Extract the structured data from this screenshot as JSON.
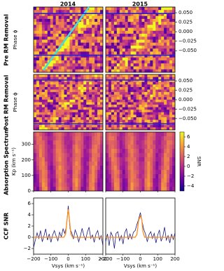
{
  "columns": [
    "2014",
    "2015"
  ],
  "rows": [
    "Pre RM Removal",
    "Post RM Removal",
    "Absorption Spectrum",
    "CCF SNR"
  ],
  "chart_data": [
    {
      "type": "heatmap",
      "ylabel": "Phase ϕ",
      "ylim": [
        -0.107,
        0.065
      ],
      "yticks": [
        {
          "value": 0.05,
          "label": "0.050"
        },
        {
          "value": 0.025,
          "label": "0.025"
        },
        {
          "value": 0,
          "label": "0.000"
        },
        {
          "value": -0.025,
          "label": "−0.025"
        },
        {
          "value": -0.05,
          "label": "−0.050"
        }
      ],
      "transit_phase": [
        0.048,
        -0.062
      ],
      "line_color": "#2020d0"
    },
    {
      "type": "heatmap",
      "ylabel": "Phase ϕ",
      "ylim": [
        -0.08,
        0.067
      ],
      "yticks": [
        {
          "value": 0.05,
          "label": "0.050"
        },
        {
          "value": 0.025,
          "label": "0.025"
        },
        {
          "value": 0,
          "label": "0.000"
        },
        {
          "value": -0.025,
          "label": "−0.025"
        },
        {
          "value": -0.05,
          "label": "−0.050"
        }
      ],
      "transit_phase": [
        0.052,
        -0.064
      ],
      "line_color": "#2020d0"
    },
    {
      "type": "heatmap",
      "ylabel": "Kp (km s⁻¹)",
      "ylim": [
        0,
        380
      ],
      "yticks": [
        0,
        100,
        200,
        300
      ],
      "colorbar": {
        "label": "SNR",
        "lim": [
          -5,
          7
        ],
        "ticks": [
          {
            "value": -4,
            "label": "−4"
          },
          {
            "value": -2,
            "label": "−2"
          },
          0,
          2,
          4,
          6
        ]
      }
    },
    {
      "type": "line",
      "ylim": [
        -3,
        7
      ],
      "yticks": [
        {
          "value": -2,
          "label": "−2"
        },
        0,
        2,
        4,
        6
      ],
      "xlim": [
        -200,
        200
      ],
      "xticks": [
        {
          "value": -200,
          "label": "−200"
        },
        {
          "value": -100,
          "label": "−100"
        },
        0,
        100,
        200
      ],
      "xlabel": "Vsys (km s⁻¹)",
      "panels": [
        {
          "series": [
            {
              "color": "#1a1a80",
              "x": [
                -200,
                -190,
                -180,
                -170,
                -160,
                -150,
                -140,
                -130,
                -120,
                -110,
                -100,
                -90,
                -80,
                -70,
                -60,
                -50,
                -40,
                -30,
                -20,
                -10,
                0,
                10,
                20,
                30,
                40,
                50,
                60,
                70,
                80,
                90,
                100,
                110,
                120,
                130,
                140,
                150,
                160,
                170,
                180,
                190,
                200
              ],
              "values": [
                -1.8,
                -0.5,
                0.8,
                -0.2,
                1.2,
                -0.8,
                0.3,
                1.5,
                -0.5,
                0.6,
                -0.9,
                0.4,
                1.2,
                0.2,
                -0.6,
                0.9,
                0.1,
                1.5,
                0.7,
                2.0,
                5.6,
                1.5,
                0.8,
                -0.3,
                1.3,
                0.5,
                -0.8,
                0.2,
                1.6,
                0.3,
                -0.5,
                0.9,
                1.8,
                -0.2,
                0.4,
                -0.9,
                0.6,
                1.2,
                -0.4,
                0.3,
                -1.5
              ]
            },
            {
              "color": "#ff8c1a",
              "x": [
                -200,
                -25,
                -15,
                -8,
                0,
                8,
                15,
                25,
                200
              ],
              "values": [
                0,
                0,
                0.6,
                2.8,
                5.0,
                2.8,
                0.6,
                0,
                0
              ]
            }
          ]
        },
        {
          "series": [
            {
              "color": "#1a1a80",
              "x": [
                -200,
                -190,
                -180,
                -170,
                -160,
                -150,
                -140,
                -130,
                -120,
                -110,
                -100,
                -90,
                -80,
                -70,
                -60,
                -50,
                -40,
                -30,
                -20,
                -10,
                0,
                10,
                20,
                30,
                40,
                50,
                60,
                70,
                80,
                90,
                100,
                110,
                120,
                130,
                140,
                150,
                160,
                170,
                180,
                190,
                200
              ],
              "values": [
                -0.8,
                0.6,
                -1.5,
                0.9,
                0.2,
                -2.0,
                0.7,
                1.0,
                -0.6,
                0.3,
                -1.2,
                0.8,
                1.5,
                -0.4,
                0.6,
                -0.3,
                0.9,
                1.2,
                2.3,
                3.2,
                4.4,
                2.8,
                1.4,
                0.6,
                -0.8,
                0.5,
                1.0,
                -0.2,
                0.7,
                -1.0,
                0.4,
                1.3,
                -0.7,
                0.2,
                1.8,
                -0.5,
                0.3,
                -1.0,
                0.6,
                -0.4,
                0.8
              ]
            },
            {
              "color": "#ff8c1a",
              "x": [
                -200,
                -30,
                -20,
                -10,
                0,
                8,
                15,
                25,
                200
              ],
              "values": [
                0,
                0,
                0.5,
                3.0,
                3.8,
                3.2,
                1.0,
                0,
                0
              ]
            }
          ]
        }
      ]
    }
  ]
}
